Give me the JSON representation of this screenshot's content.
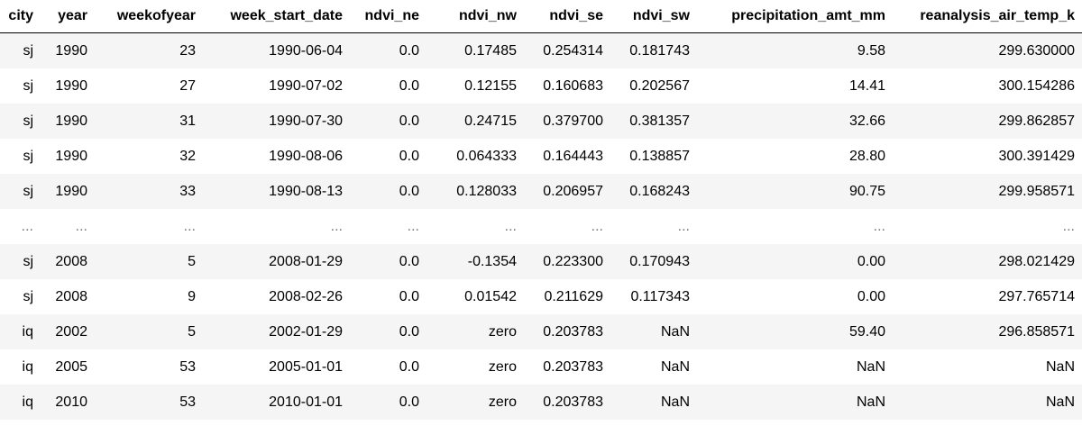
{
  "table": {
    "columns": [
      "city",
      "year",
      "weekofyear",
      "week_start_date",
      "ndvi_ne",
      "ndvi_nw",
      "ndvi_se",
      "ndvi_sw",
      "precipitation_amt_mm",
      "reanalysis_air_temp_k"
    ],
    "rows": [
      [
        "sj",
        "1990",
        "23",
        "1990-06-04",
        "0.0",
        "0.17485",
        "0.254314",
        "0.181743",
        "9.58",
        "299.630000"
      ],
      [
        "sj",
        "1990",
        "27",
        "1990-07-02",
        "0.0",
        "0.12155",
        "0.160683",
        "0.202567",
        "14.41",
        "300.154286"
      ],
      [
        "sj",
        "1990",
        "31",
        "1990-07-30",
        "0.0",
        "0.24715",
        "0.379700",
        "0.381357",
        "32.66",
        "299.862857"
      ],
      [
        "sj",
        "1990",
        "32",
        "1990-08-06",
        "0.0",
        "0.064333",
        "0.164443",
        "0.138857",
        "28.80",
        "300.391429"
      ],
      [
        "sj",
        "1990",
        "33",
        "1990-08-13",
        "0.0",
        "0.128033",
        "0.206957",
        "0.168243",
        "90.75",
        "299.958571"
      ],
      [
        "...",
        "...",
        "...",
        "...",
        "...",
        "...",
        "...",
        "...",
        "...",
        "..."
      ],
      [
        "sj",
        "2008",
        "5",
        "2008-01-29",
        "0.0",
        "-0.1354",
        "0.223300",
        "0.170943",
        "0.00",
        "298.021429"
      ],
      [
        "sj",
        "2008",
        "9",
        "2008-02-26",
        "0.0",
        "0.01542",
        "0.211629",
        "0.117343",
        "0.00",
        "297.765714"
      ],
      [
        "iq",
        "2002",
        "5",
        "2002-01-29",
        "0.0",
        "zero",
        "0.203783",
        "NaN",
        "59.40",
        "296.858571"
      ],
      [
        "iq",
        "2005",
        "53",
        "2005-01-01",
        "0.0",
        "zero",
        "0.203783",
        "NaN",
        "NaN",
        "NaN"
      ],
      [
        "iq",
        "2010",
        "53",
        "2010-01-01",
        "0.0",
        "zero",
        "0.203783",
        "NaN",
        "NaN",
        "NaN"
      ]
    ]
  }
}
